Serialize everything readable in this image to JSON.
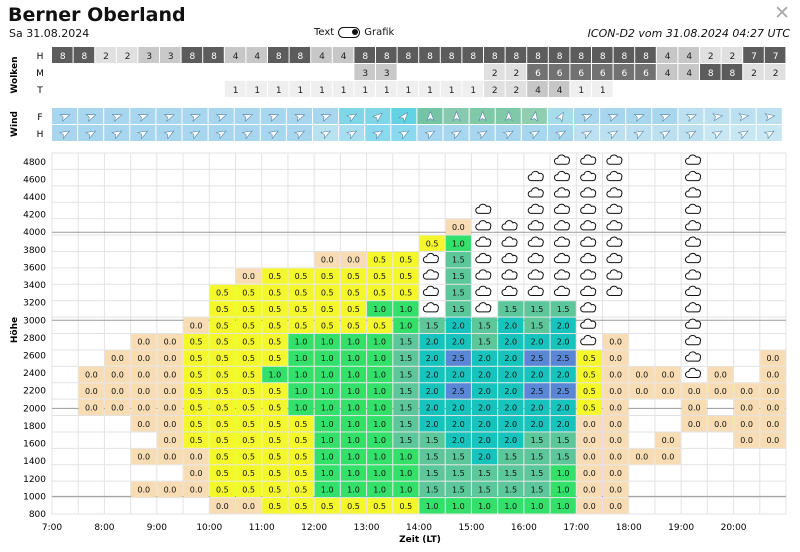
{
  "header": {
    "title": "Berner Oberland",
    "date": "Sa 31.08.2024",
    "toggle_left": "Text",
    "toggle_right": "Grafik",
    "model": "ICON-D2 vom 31.08.2024 04:27 UTC",
    "close_symbol": "✕"
  },
  "wolken": {
    "section_label": "Wolken",
    "row_labels": [
      "H",
      "M",
      "T"
    ],
    "rows": [
      [
        "8",
        "8",
        "2",
        "2",
        "3",
        "3",
        "8",
        "8",
        "4",
        "4",
        "8",
        "8",
        "4",
        "4",
        "8",
        "8",
        "8",
        "8",
        "8",
        "8",
        "8",
        "8",
        "8",
        "8",
        "8",
        "8",
        "8",
        "8",
        "4",
        "4",
        "2",
        "2",
        "7",
        "7"
      ],
      [
        "",
        "",
        "",
        "",
        "",
        "",
        "",
        "",
        "",
        "",
        "",
        "",
        "",
        "",
        "3",
        "3",
        "",
        "",
        "",
        "",
        "2",
        "2",
        "6",
        "6",
        "6",
        "6",
        "6",
        "6",
        "4",
        "4",
        "8",
        "8",
        "2",
        "2"
      ],
      [
        "",
        "",
        "",
        "",
        "",
        "",
        "",
        "",
        "1",
        "1",
        "1",
        "1",
        "1",
        "1",
        "1",
        "1",
        "1",
        "1",
        "1",
        "1",
        "2",
        "2",
        "4",
        "4",
        "1",
        "1",
        "",
        "",
        "",
        "",
        "",
        "",
        "",
        ""
      ]
    ]
  },
  "wind": {
    "section_label": "Wind",
    "row_labels": [
      "F",
      "H"
    ]
  },
  "chart_data": {
    "type": "table",
    "xlabel": "Zeit (LT)",
    "ylabel": "Höhe",
    "x_ticks": [
      "7:00",
      "8:00",
      "9:00",
      "10:00",
      "11:00",
      "12:00",
      "13:00",
      "14:00",
      "15:00",
      "16:00",
      "17:00",
      "18:00",
      "19:00",
      "20:00"
    ],
    "y_ticks": [
      "800",
      "1000",
      "1200",
      "1400",
      "1600",
      "1800",
      "2000",
      "2200",
      "2400",
      "2600",
      "2800",
      "3000",
      "3200",
      "3400",
      "3600",
      "3800",
      "4000",
      "4200",
      "4400",
      "4600",
      "4800"
    ],
    "columns": [
      "7:00",
      "7:30",
      "8:00",
      "8:30",
      "9:00",
      "9:30",
      "10:00",
      "10:30",
      "11:00",
      "11:30",
      "12:00",
      "12:30",
      "13:00",
      "13:30",
      "14:00",
      "14:30",
      "15:00",
      "15:30",
      "16:00",
      "16:30",
      "17:00",
      "17:30",
      "18:00",
      "18:30",
      "19:00",
      "19:30",
      "20:00",
      "20:30"
    ],
    "rows_top_to_bottom": [
      [
        "",
        "",
        "",
        "",
        "",
        "",
        "",
        "",
        "",
        "",
        "",
        "",
        "",
        "",
        "",
        "",
        "",
        "",
        "",
        "c",
        "c",
        "c",
        "",
        "",
        "c",
        "",
        "",
        ""
      ],
      [
        "",
        "",
        "",
        "",
        "",
        "",
        "",
        "",
        "",
        "",
        "",
        "",
        "",
        "",
        "",
        "",
        "",
        "",
        "c",
        "c",
        "c",
        "c",
        "",
        "",
        "c",
        "",
        "",
        ""
      ],
      [
        "",
        "",
        "",
        "",
        "",
        "",
        "",
        "",
        "",
        "",
        "",
        "",
        "",
        "",
        "",
        "",
        "",
        "",
        "c",
        "c",
        "c",
        "c",
        "",
        "",
        "c",
        "",
        "",
        ""
      ],
      [
        "",
        "",
        "",
        "",
        "",
        "",
        "",
        "",
        "",
        "",
        "",
        "",
        "",
        "",
        "",
        "",
        "c",
        "",
        "c",
        "c",
        "c",
        "c",
        "",
        "",
        "c",
        "",
        "",
        ""
      ],
      [
        "",
        "",
        "",
        "",
        "",
        "",
        "",
        "",
        "",
        "",
        "",
        "",
        "",
        "",
        "",
        "0.0",
        "c",
        "c",
        "c",
        "c",
        "c",
        "c",
        "",
        "",
        "c",
        "",
        "",
        ""
      ],
      [
        "",
        "",
        "",
        "",
        "",
        "",
        "",
        "",
        "",
        "",
        "",
        "",
        "",
        "",
        "0.5",
        "1.0",
        "c",
        "c",
        "c",
        "c",
        "c",
        "c",
        "",
        "",
        "c",
        "",
        "",
        ""
      ],
      [
        "",
        "",
        "",
        "",
        "",
        "",
        "",
        "",
        "",
        "",
        "0.0",
        "0.0",
        "0.5",
        "0.5",
        "c",
        "1.5",
        "c",
        "c",
        "c",
        "c",
        "c",
        "c",
        "",
        "",
        "c",
        "",
        "",
        ""
      ],
      [
        "",
        "",
        "",
        "",
        "",
        "",
        "",
        "0.0",
        "0.5",
        "0.5",
        "0.5",
        "0.5",
        "0.5",
        "0.5",
        "c",
        "1.5",
        "c",
        "c",
        "c",
        "c",
        "c",
        "c",
        "",
        "",
        "c",
        "",
        "",
        ""
      ],
      [
        "",
        "",
        "",
        "",
        "",
        "",
        "0.5",
        "0.5",
        "0.5",
        "0.5",
        "0.5",
        "0.5",
        "0.5",
        "0.5",
        "c",
        "1.5",
        "c",
        "c",
        "c",
        "c",
        "c",
        "c",
        "",
        "",
        "c",
        "",
        "",
        ""
      ],
      [
        "",
        "",
        "",
        "",
        "",
        "",
        "0.5",
        "0.5",
        "0.5",
        "0.5",
        "0.5",
        "0.5",
        "1.0",
        "1.0",
        "c",
        "1.5",
        "c",
        "1.5",
        "1.5",
        "1.5",
        "c",
        "",
        "",
        "",
        "c",
        "",
        "",
        ""
      ],
      [
        "",
        "",
        "",
        "",
        "",
        "0.0",
        "0.5",
        "0.5",
        "0.5",
        "0.5",
        "0.5",
        "0.5",
        "0.5",
        "1.0",
        "1.5",
        "2.0",
        "1.5",
        "2.0",
        "1.5",
        "2.0",
        "c",
        "",
        "",
        "",
        "c",
        "",
        "",
        ""
      ],
      [
        "",
        "",
        "",
        "0.0",
        "0.0",
        "0.5",
        "0.5",
        "0.5",
        "0.5",
        "1.0",
        "1.0",
        "1.0",
        "1.0",
        "1.5",
        "2.0",
        "2.0",
        "1.5",
        "2.0",
        "2.0",
        "2.0",
        "c",
        "0.0",
        "",
        "",
        "c",
        "",
        "",
        ""
      ],
      [
        "",
        "",
        "0.0",
        "0.0",
        "0.0",
        "0.5",
        "0.5",
        "0.5",
        "0.5",
        "1.0",
        "1.0",
        "1.0",
        "1.0",
        "1.5",
        "2.0",
        "2.5",
        "2.0",
        "2.0",
        "2.5",
        "2.5",
        "0.5",
        "0.0",
        "",
        "",
        "c",
        "",
        "",
        "0.0"
      ],
      [
        "",
        "0.0",
        "0.0",
        "0.0",
        "0.0",
        "0.5",
        "0.5",
        "0.5",
        "1.0",
        "1.0",
        "1.0",
        "1.0",
        "1.0",
        "1.5",
        "2.0",
        "2.0",
        "2.0",
        "2.0",
        "2.0",
        "2.0",
        "0.5",
        "0.0",
        "0.0",
        "0.0",
        "c",
        "0.0",
        "",
        "0.0"
      ],
      [
        "",
        "0.0",
        "0.0",
        "0.0",
        "0.0",
        "0.5",
        "0.5",
        "0.5",
        "0.5",
        "1.0",
        "1.0",
        "1.0",
        "1.0",
        "1.5",
        "2.0",
        "2.5",
        "2.0",
        "2.0",
        "2.5",
        "2.5",
        "0.5",
        "0.0",
        "0.0",
        "0.0",
        "0.0",
        "0.0",
        "0.0",
        "0.0"
      ],
      [
        "",
        "0.0",
        "0.0",
        "0.0",
        "0.0",
        "0.5",
        "0.5",
        "0.5",
        "0.5",
        "1.0",
        "1.0",
        "1.0",
        "1.0",
        "1.5",
        "2.0",
        "2.0",
        "2.0",
        "2.0",
        "2.0",
        "2.0",
        "0.5",
        "0.0",
        "",
        "",
        "0.0",
        "",
        "0.0",
        "0.0"
      ],
      [
        "",
        "",
        "",
        "0.0",
        "0.0",
        "0.5",
        "0.5",
        "0.5",
        "0.5",
        "0.5",
        "1.0",
        "1.0",
        "1.0",
        "1.5",
        "2.0",
        "2.0",
        "2.0",
        "2.0",
        "2.0",
        "2.0",
        "0.0",
        "0.0",
        "",
        "",
        "0.0",
        "0.0",
        "0.0",
        "0.0"
      ],
      [
        "",
        "",
        "",
        "",
        "0.0",
        "0.5",
        "0.5",
        "0.5",
        "0.5",
        "0.5",
        "1.0",
        "1.0",
        "1.0",
        "1.5",
        "1.5",
        "2.0",
        "2.0",
        "2.0",
        "1.5",
        "1.5",
        "0.0",
        "0.0",
        "",
        "0.0",
        "",
        "",
        "0.0",
        "0.0"
      ],
      [
        "",
        "",
        "",
        "0.0",
        "0.0",
        "0.0",
        "0.5",
        "0.5",
        "0.5",
        "0.5",
        "1.0",
        "1.0",
        "1.0",
        "1.0",
        "1.5",
        "1.5",
        "2.0",
        "1.5",
        "1.5",
        "1.5",
        "0.0",
        "0.0",
        "0.0",
        "0.0",
        "",
        "",
        "",
        ""
      ],
      [
        "",
        "",
        "",
        "",
        "",
        "0.0",
        "0.5",
        "0.5",
        "0.5",
        "0.5",
        "1.0",
        "1.0",
        "1.0",
        "1.0",
        "1.5",
        "1.5",
        "1.5",
        "1.5",
        "1.5",
        "1.0",
        "0.0",
        "0.0",
        "",
        "",
        "",
        "",
        "",
        ""
      ],
      [
        "",
        "",
        "",
        "0.0",
        "0.0",
        "0.0",
        "0.5",
        "0.5",
        "0.5",
        "0.5",
        "1.0",
        "1.0",
        "1.0",
        "1.0",
        "1.5",
        "1.5",
        "1.5",
        "1.5",
        "1.5",
        "1.0",
        "0.0",
        "0.0",
        "",
        "",
        "",
        "",
        "",
        ""
      ],
      [
        "",
        "",
        "",
        "",
        "",
        "",
        "0.0",
        "0.0",
        "0.5",
        "0.5",
        "0.5",
        "0.5",
        "0.5",
        "0.5",
        "1.0",
        "1.0",
        "1.0",
        "1.0",
        "1.0",
        "1.0",
        "0.0",
        "0.0",
        "",
        "",
        "",
        "",
        "",
        ""
      ]
    ]
  },
  "colors": {
    "0.0": "#f7dcb4",
    "0.5": "#f4f72b",
    "1.0": "#33e06a",
    "1.5": "#5cc79b",
    "2.0": "#17c3bd",
    "2.5": "#5a86d6"
  }
}
